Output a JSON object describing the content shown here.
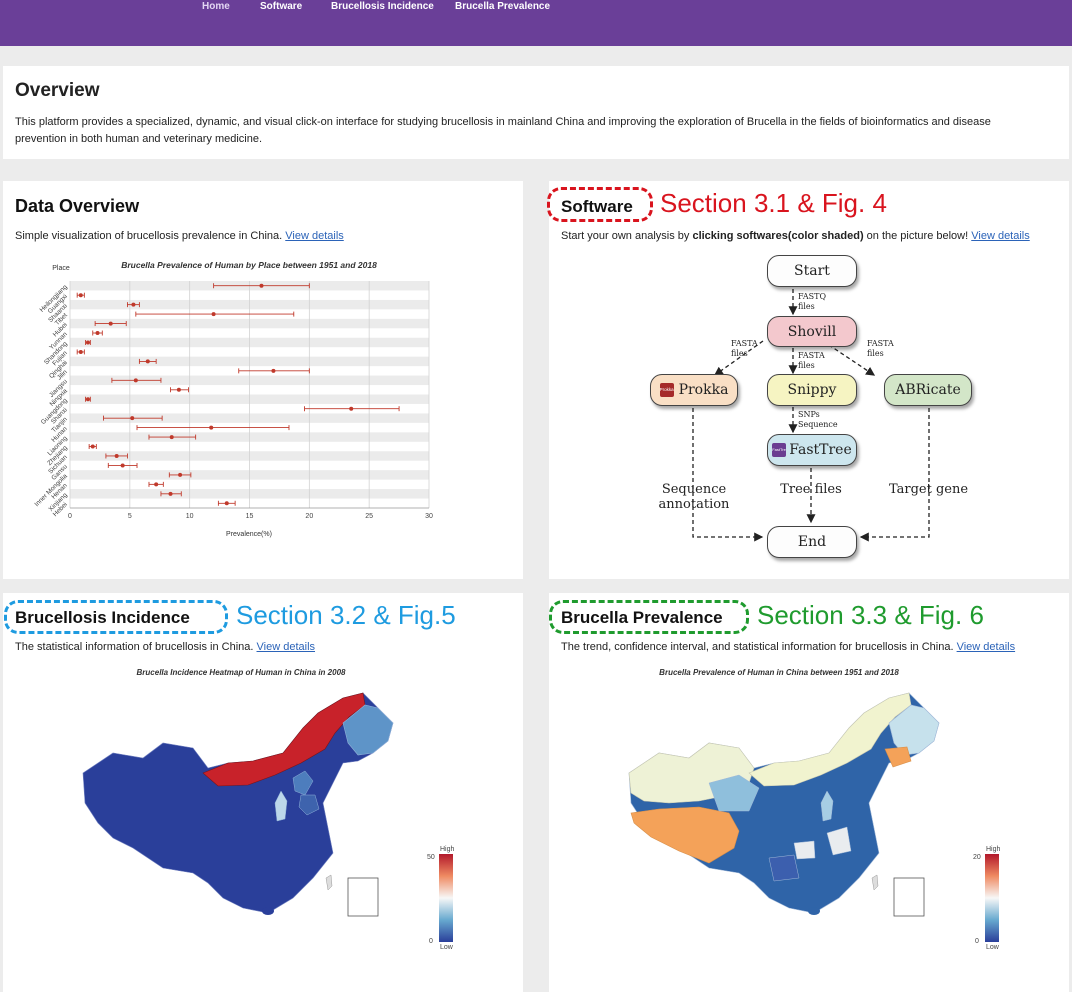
{
  "nav": {
    "items": [
      "Home",
      "Software",
      "Brucellosis Incidence",
      "Brucella Prevalence"
    ]
  },
  "overview": {
    "title": "Overview",
    "text": "This platform provides a specialized, dynamic, and visual click-on interface for studying brucellosis in mainland China and improving the exploration of Brucella in the fields of bioinformatics and disease prevention in both human and veterinary medicine."
  },
  "data_overview": {
    "title": "Data Overview",
    "desc": "Simple visualization of brucellosis prevalence in China.",
    "link": "View details"
  },
  "software": {
    "title": "Software",
    "callout": "Section 3.1 & Fig. 4",
    "desc_pre": "Start your own analysis by ",
    "desc_bold": "clicking softwares(color shaded)",
    "desc_post": " on the picture below!",
    "link": "View details",
    "nodes": {
      "start": "Start",
      "shovill": "Shovill",
      "prokka": "Prokka",
      "snippy": "Snippy",
      "abricate": "ABRicate",
      "fasttree": "FastTree",
      "end": "End",
      "prokka_badge": "Prokka",
      "fasttree_badge": "FastTree"
    },
    "labels": {
      "fastq": "FASTQ\nfiles",
      "fasta_left": "FASTA\nfiles",
      "fasta_mid": "FASTA\nfiles",
      "fasta_right": "FASTA\nfiles",
      "snps": "SNPs\nSequence",
      "seq_annot": "Sequence\nannotation",
      "tree_files": "Tree files",
      "target_gene": "Target gene"
    }
  },
  "incidence": {
    "title": "Brucellosis Incidence",
    "callout": "Section 3.2 & Fig.5",
    "desc": "The statistical information of brucellosis in China.",
    "link": "View details",
    "map_title": "Brucella Incidence Heatmap of Human in China in 2008",
    "legend": {
      "high": "High",
      "low": "Low",
      "max": "50",
      "min": "0"
    }
  },
  "prevalence": {
    "title": "Brucella Prevalence",
    "callout": "Section 3.3 & Fig. 6",
    "desc": "The trend, confidence interval, and statistical information for brucellosis in China.",
    "link": "View details",
    "map_title": "Brucella Prevalence of Human in China between 1951 and 2018",
    "legend": {
      "high": "High",
      "low": "Low",
      "max": "20",
      "min": "0"
    }
  },
  "colors": {
    "nav": "#6a3f98",
    "software_callout": "#d9141e",
    "incidence_callout": "#1e9be0",
    "prevalence_callout": "#1f9b2e",
    "point": "#c0392b"
  },
  "chart_data": {
    "type": "scatter",
    "title": "Brucella Prevalence of Human by Place between 1951 and 2018",
    "xlabel": "Prevalence(%)",
    "ylabel": "Place",
    "xlim": [
      0,
      30
    ],
    "xticks": [
      0,
      5,
      10,
      15,
      20,
      25,
      30
    ],
    "grid": true,
    "categories": [
      "Heilongjiang",
      "Guangxi",
      "Shaanxi",
      "Tibet",
      "Hubei",
      "Yunnan",
      "Shandong",
      "Fujian",
      "Qinghai",
      "Jilin",
      "Jiangsu",
      "Ningxia",
      "Guangdong",
      "Shanxi",
      "Tianjin",
      "Hunan",
      "Liaoning",
      "Zhejiang",
      "Sichuan",
      "Gansu",
      "Inner Mongolia",
      "Henan",
      "Xinjiang",
      "Hebei"
    ],
    "series": [
      {
        "values": [
          16,
          0.9,
          5.3,
          12,
          3.4,
          2.3,
          1.5,
          0.9,
          6.5,
          17,
          5.5,
          9.1,
          1.5,
          23.5,
          5.2,
          11.8,
          8.5,
          1.9,
          3.9,
          4.4,
          9.2,
          7.2,
          8.4,
          13.1
        ],
        "lower": [
          12,
          0.6,
          4.8,
          5.5,
          2.1,
          1.9,
          1.3,
          0.6,
          5.8,
          14.1,
          3.5,
          8.4,
          1.3,
          19.6,
          2.8,
          5.6,
          6.6,
          1.6,
          3.0,
          3.2,
          8.3,
          6.6,
          7.6,
          12.4
        ],
        "upper": [
          20,
          1.2,
          5.8,
          18.7,
          4.7,
          2.7,
          1.7,
          1.2,
          7.2,
          20,
          7.6,
          9.9,
          1.7,
          27.5,
          7.7,
          18.3,
          10.5,
          2.2,
          4.8,
          5.6,
          10.1,
          7.8,
          9.3,
          13.8
        ]
      }
    ]
  }
}
